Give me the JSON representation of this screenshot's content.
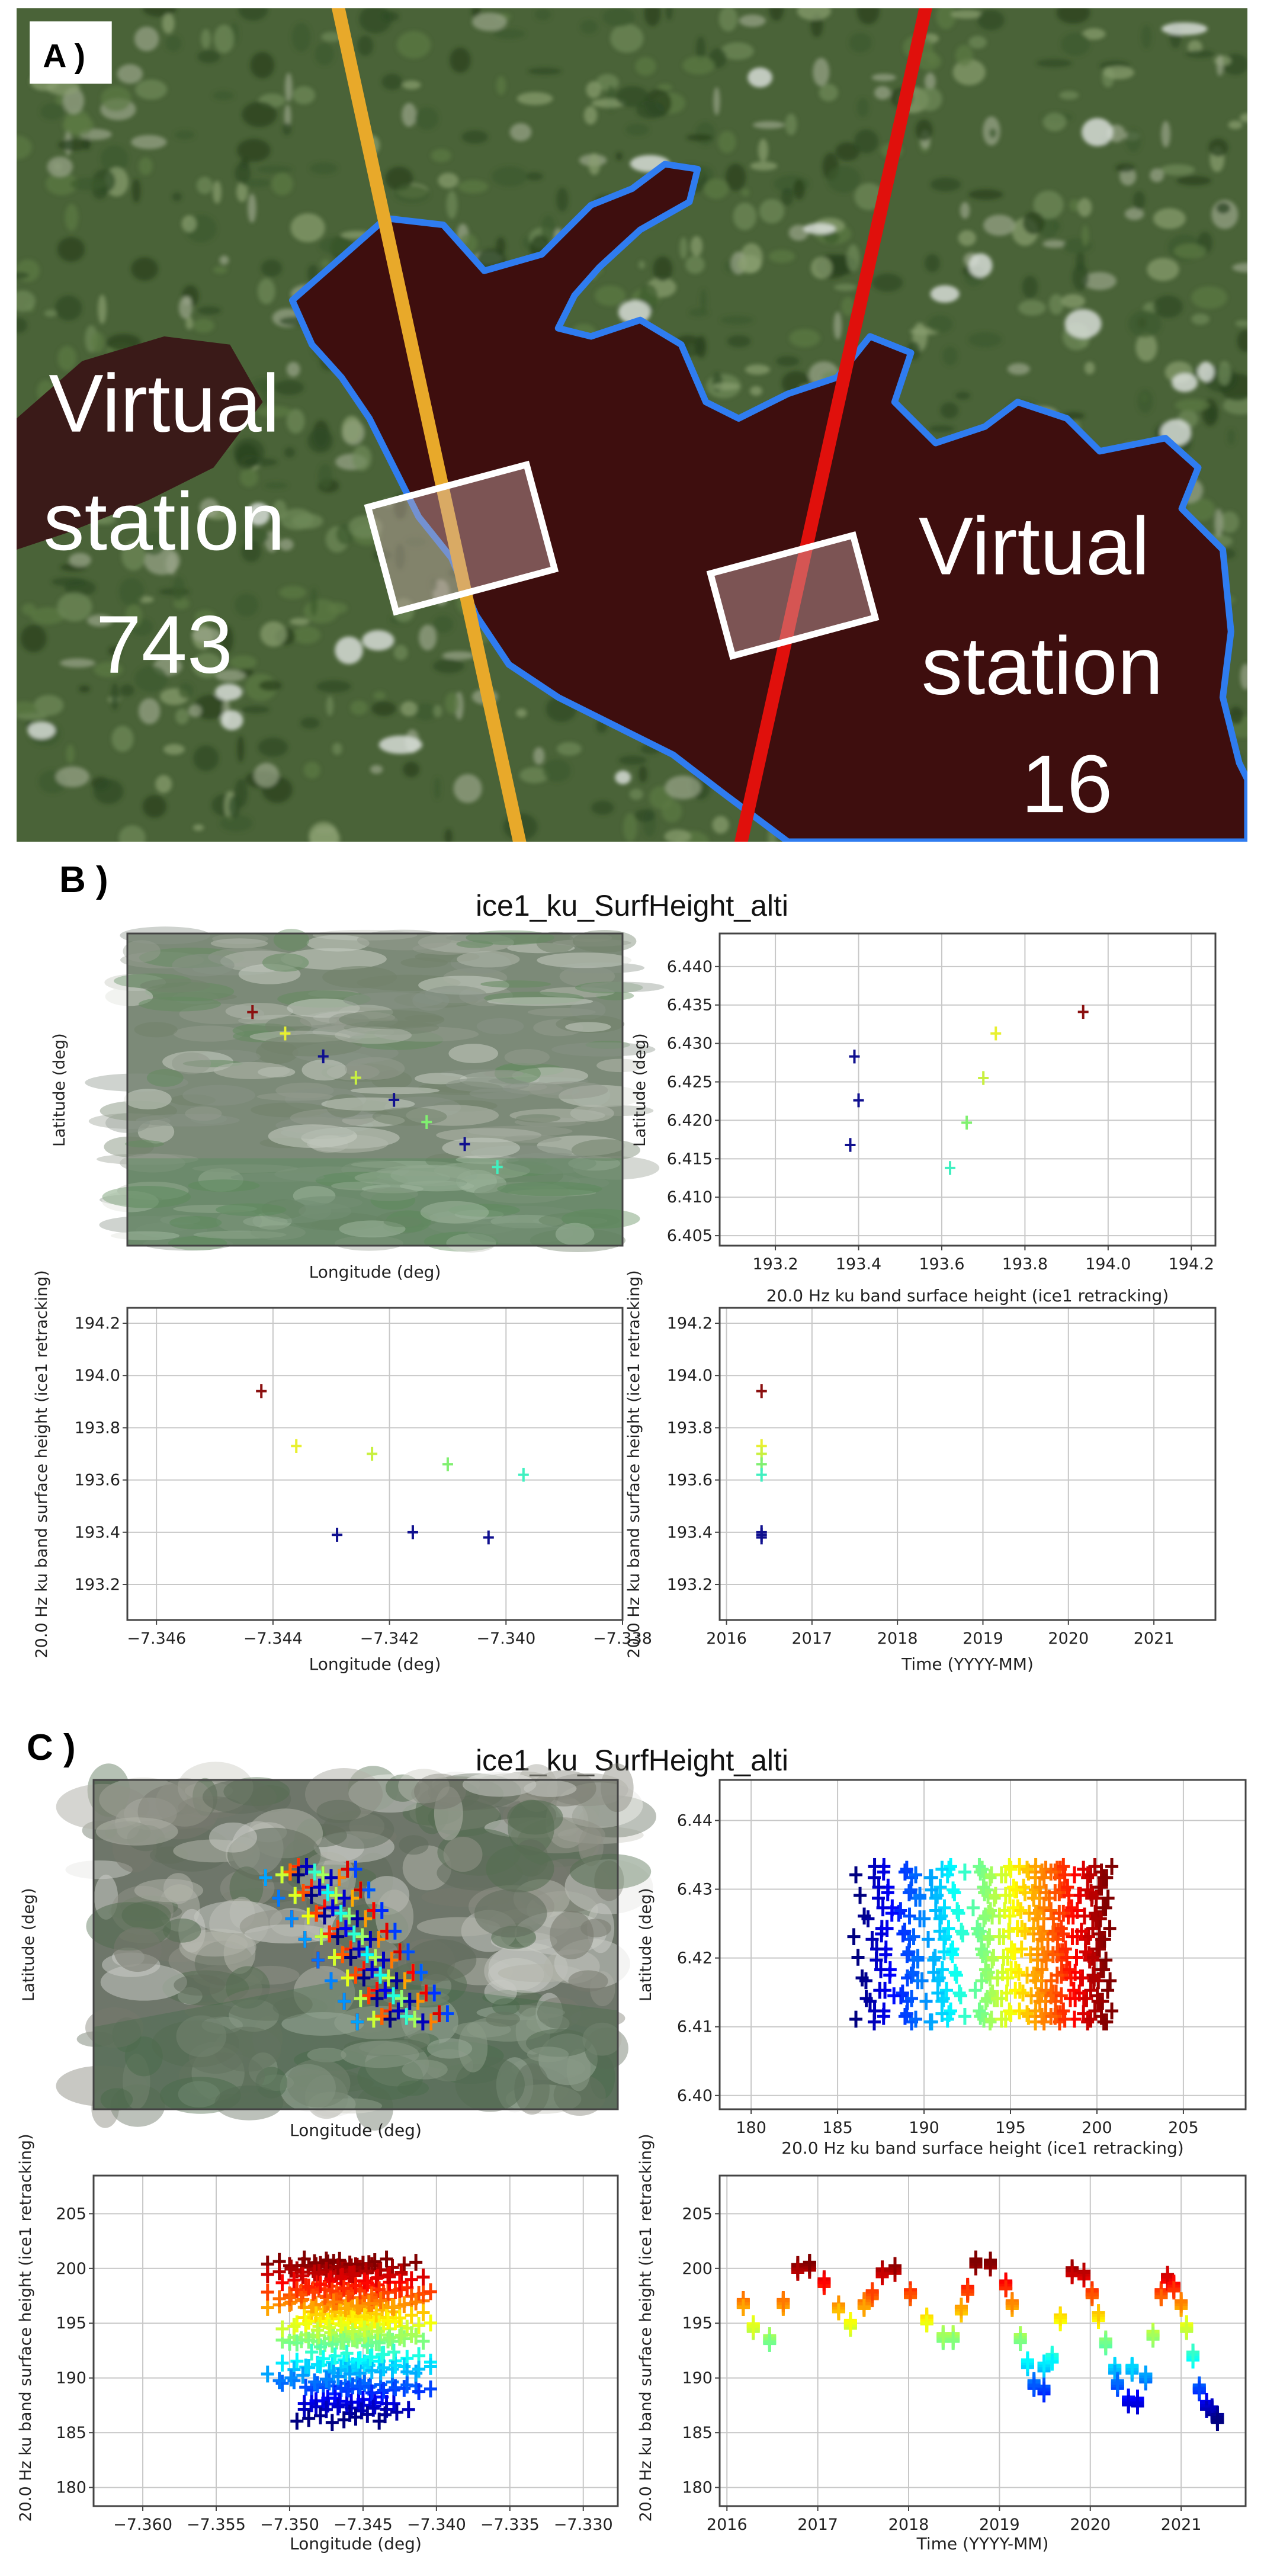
{
  "panel_a": {
    "label": "A )",
    "station_left": {
      "lines": [
        "Virtual",
        "station",
        "743"
      ]
    },
    "station_right": {
      "lines": [
        "Virtual",
        "station",
        "16"
      ]
    },
    "colors": {
      "track_743": "#e8a92a",
      "track_16": "#e0100c",
      "lake": "#3e0e0e",
      "lake_outline": "#2f7cf0",
      "box": "#ffffff"
    }
  },
  "panel_b": {
    "label": "B )",
    "title": "ice1_ku_SurfHeight_alti"
  },
  "panel_c": {
    "label": "C )",
    "title": "ice1_ku_SurfHeight_alti"
  },
  "datasets": {
    "b": [
      {
        "lon": -7.3442,
        "lat": 6.4341,
        "h": 193.94,
        "t": 2016.41,
        "color": "#8b1010"
      },
      {
        "lon": -7.3436,
        "lat": 6.4313,
        "h": 193.73,
        "t": 2016.41,
        "color": "#e8f030"
      },
      {
        "lon": -7.3429,
        "lat": 6.4283,
        "h": 193.39,
        "t": 2016.41,
        "color": "#10108f"
      },
      {
        "lon": -7.3423,
        "lat": 6.4255,
        "h": 193.7,
        "t": 2016.41,
        "color": "#c8f040"
      },
      {
        "lon": -7.3416,
        "lat": 6.4226,
        "h": 193.4,
        "t": 2016.41,
        "color": "#10108f"
      },
      {
        "lon": -7.341,
        "lat": 6.4197,
        "h": 193.66,
        "t": 2016.41,
        "color": "#80f070"
      },
      {
        "lon": -7.3403,
        "lat": 6.4168,
        "h": 193.38,
        "t": 2016.41,
        "color": "#10108f"
      },
      {
        "lon": -7.3397,
        "lat": 6.4138,
        "h": 193.62,
        "t": 2016.41,
        "color": "#40f0c0"
      }
    ],
    "c": {
      "colormap": "jet",
      "color_range": [
        186.3,
        200.5
      ],
      "along_track": {
        "n": 8,
        "lat_start": 6.4325,
        "lat_step": -0.003,
        "lon_start": -7.3515,
        "lon_step": 0.0008
      },
      "passes": [
        [
          2016.18,
          196.8,
          0.0
        ],
        [
          2016.29,
          194.6,
          0.0035
        ],
        [
          2016.47,
          193.5,
          0.0015
        ],
        [
          2016.62,
          196.8,
          0.005
        ],
        [
          2016.78,
          200.0,
          0.002
        ],
        [
          2016.91,
          200.2,
          0.0045
        ],
        [
          2017.07,
          198.7,
          0.001
        ],
        [
          2017.23,
          196.4,
          0.003
        ],
        [
          2017.36,
          194.9,
          0.0055
        ],
        [
          2017.51,
          196.7,
          0.0025
        ],
        [
          2017.6,
          197.6,
          0.0
        ],
        [
          2017.71,
          199.6,
          0.0035
        ],
        [
          2017.85,
          199.9,
          0.0015
        ],
        [
          2018.02,
          197.7,
          0.005
        ],
        [
          2018.2,
          195.3,
          0.002
        ],
        [
          2018.38,
          193.7,
          0.0045
        ],
        [
          2018.49,
          193.7,
          0.001
        ],
        [
          2018.58,
          196.2,
          0.003
        ],
        [
          2018.65,
          198.0,
          0.0055
        ],
        [
          2018.74,
          200.5,
          0.0025
        ],
        [
          2018.9,
          200.4,
          0.0
        ],
        [
          2019.07,
          198.5,
          0.0035
        ],
        [
          2019.14,
          196.7,
          0.0015
        ],
        [
          2019.23,
          193.6,
          0.005
        ],
        [
          2019.31,
          191.3,
          0.002
        ],
        [
          2019.38,
          189.4,
          0.0045
        ],
        [
          2019.49,
          191.0,
          0.001
        ],
        [
          2019.49,
          188.9,
          0.003
        ],
        [
          2019.58,
          191.8,
          0.0055
        ],
        [
          2019.67,
          195.4,
          0.0025
        ],
        [
          2019.8,
          199.7,
          0.0
        ],
        [
          2019.93,
          199.4,
          0.0035
        ],
        [
          2020.02,
          197.7,
          0.0015
        ],
        [
          2020.09,
          195.6,
          0.005
        ],
        [
          2020.17,
          193.2,
          0.002
        ],
        [
          2020.27,
          190.8,
          0.0045
        ],
        [
          2020.3,
          189.4,
          0.001
        ],
        [
          2020.42,
          187.9,
          0.003
        ],
        [
          2020.46,
          190.8,
          0.0055
        ],
        [
          2020.52,
          187.8,
          0.0025
        ],
        [
          2020.61,
          190.0,
          0.0
        ],
        [
          2020.69,
          193.9,
          0.0035
        ],
        [
          2020.78,
          197.7,
          0.0015
        ],
        [
          2020.85,
          199.1,
          0.005
        ],
        [
          2020.92,
          198.3,
          0.002
        ],
        [
          2021.0,
          196.7,
          0.0045
        ],
        [
          2021.06,
          194.6,
          0.001
        ],
        [
          2021.13,
          192.0,
          0.003
        ],
        [
          2021.2,
          189.0,
          0.0055
        ],
        [
          2021.28,
          187.5,
          0.0025
        ],
        [
          2021.34,
          187.0,
          0.004
        ],
        [
          2021.4,
          186.3,
          0.002
        ]
      ],
      "pass_fields": [
        "time",
        "height",
        "cross_track_lon_offset"
      ]
    }
  },
  "chart_data": [
    {
      "id": "b-map",
      "type": "scatter",
      "dataset": "b",
      "x_var": "lon",
      "y_var": "lat",
      "background": "satellite-image",
      "xlabel": "Longitude (deg)",
      "ylabel": "Latitude (deg)",
      "xlim": [
        -7.3465,
        -7.3374
      ],
      "ylim": [
        6.4035,
        6.4444
      ],
      "xticks": [],
      "xtick_labels": [],
      "yticks": [],
      "ytick_labels": [],
      "grid": false
    },
    {
      "id": "b-height-lat",
      "type": "scatter",
      "dataset": "b",
      "x_var": "h",
      "y_var": "lat",
      "xlabel": "20.0 Hz ku band surface height (ice1 retracking)",
      "ylabel": "Latitude (deg)",
      "xlim": [
        193.066,
        194.258
      ],
      "ylim": [
        6.4037,
        6.4443
      ],
      "xticks": [
        193.2,
        193.4,
        193.6,
        193.8,
        194.0,
        194.2
      ],
      "xtick_labels": [
        "193.2",
        "193.4",
        "193.6",
        "193.8",
        "194.0",
        "194.2"
      ],
      "yticks": [
        6.405,
        6.41,
        6.415,
        6.42,
        6.425,
        6.43,
        6.435,
        6.44
      ],
      "ytick_labels": [
        "6.405",
        "6.410",
        "6.415",
        "6.420",
        "6.425",
        "6.430",
        "6.435",
        "6.440"
      ],
      "grid": true
    },
    {
      "id": "b-lon-height",
      "type": "scatter",
      "dataset": "b",
      "x_var": "lon",
      "y_var": "h",
      "xlabel": "Longitude (deg)",
      "ylabel": "20.0 Hz ku band surface height (ice1 retracking)",
      "xlim": [
        -7.3465,
        -7.338
      ],
      "ylim": [
        193.064,
        194.259
      ],
      "xticks": [
        -7.346,
        -7.344,
        -7.342,
        -7.34,
        -7.338
      ],
      "xtick_labels": [
        "−7.346",
        "−7.344",
        "−7.342",
        "−7.340",
        "−7.338"
      ],
      "yticks": [
        193.2,
        193.4,
        193.6,
        193.8,
        194.0,
        194.2
      ],
      "ytick_labels": [
        "193.2",
        "193.4",
        "193.6",
        "193.8",
        "194.0",
        "194.2"
      ],
      "grid": true
    },
    {
      "id": "b-time-height",
      "type": "scatter",
      "dataset": "b",
      "x_var": "t",
      "y_var": "h",
      "xlabel": "Time (YYYY-MM)",
      "ylabel": "20.0 Hz ku band surface height (ice1 retracking)",
      "xlim": [
        2015.92,
        2021.72
      ],
      "ylim": [
        193.064,
        194.259
      ],
      "xticks": [
        2016,
        2017,
        2018,
        2019,
        2020,
        2021
      ],
      "xtick_labels": [
        "2016",
        "2017",
        "2018",
        "2019",
        "2020",
        "2021"
      ],
      "yticks": [
        193.2,
        193.4,
        193.6,
        193.8,
        194.0,
        194.2
      ],
      "ytick_labels": [
        "193.2",
        "193.4",
        "193.6",
        "193.8",
        "194.0",
        "194.2"
      ],
      "grid": true
    },
    {
      "id": "c-map",
      "type": "scatter",
      "dataset": "c",
      "x_var": "lon",
      "y_var": "lat",
      "background": "satellite-image",
      "xlabel": "Longitude (deg)",
      "ylabel": "Latitude (deg)",
      "xlim": [
        -7.362,
        -7.33
      ],
      "ylim": [
        6.398,
        6.4459
      ],
      "xticks": [],
      "xtick_labels": [],
      "yticks": [],
      "ytick_labels": [],
      "grid": false
    },
    {
      "id": "c-height-lat",
      "type": "scatter",
      "dataset": "c",
      "x_var": "h",
      "y_var": "lat",
      "xlabel": "20.0 Hz ku band surface height (ice1 retracking)",
      "ylabel": "Latitude (deg)",
      "xlim": [
        178.18,
        208.6
      ],
      "ylim": [
        6.398,
        6.4459
      ],
      "xticks": [
        180,
        185,
        190,
        195,
        200,
        205
      ],
      "xtick_labels": [
        "180",
        "185",
        "190",
        "195",
        "200",
        "205"
      ],
      "yticks": [
        6.4,
        6.41,
        6.42,
        6.43,
        6.44
      ],
      "ytick_labels": [
        "6.40",
        "6.41",
        "6.42",
        "6.43",
        "6.44"
      ],
      "grid": true
    },
    {
      "id": "c-lon-height",
      "type": "scatter",
      "dataset": "c",
      "x_var": "lon",
      "y_var": "h",
      "xlabel": "Longitude (deg)",
      "ylabel": "20.0 Hz ku band surface height (ice1 retracking)",
      "xlim": [
        -7.36335,
        -7.32765
      ],
      "ylim": [
        178.3,
        208.48
      ],
      "xticks": [
        -7.36,
        -7.355,
        -7.35,
        -7.345,
        -7.34,
        -7.335,
        -7.33
      ],
      "xtick_labels": [
        "−7.360",
        "−7.355",
        "−7.350",
        "−7.345",
        "−7.340",
        "−7.335",
        "−7.330"
      ],
      "yticks": [
        180,
        185,
        190,
        195,
        200,
        205
      ],
      "ytick_labels": [
        "180",
        "185",
        "190",
        "195",
        "200",
        "205"
      ],
      "grid": true
    },
    {
      "id": "c-time-height",
      "type": "scatter",
      "dataset": "c",
      "x_var": "t",
      "y_var": "h",
      "xlabel": "Time (YYYY-MM)",
      "ylabel": "20.0 Hz ku band surface height (ice1 retracking)",
      "xlim": [
        2015.92,
        2021.71
      ],
      "ylim": [
        178.3,
        208.48
      ],
      "xticks": [
        2016,
        2017,
        2018,
        2019,
        2020,
        2021
      ],
      "xtick_labels": [
        "2016",
        "2017",
        "2018",
        "2019",
        "2020",
        "2021"
      ],
      "yticks": [
        180,
        185,
        190,
        195,
        200,
        205
      ],
      "ytick_labels": [
        "180",
        "185",
        "190",
        "195",
        "200",
        "205"
      ],
      "grid": true
    }
  ]
}
